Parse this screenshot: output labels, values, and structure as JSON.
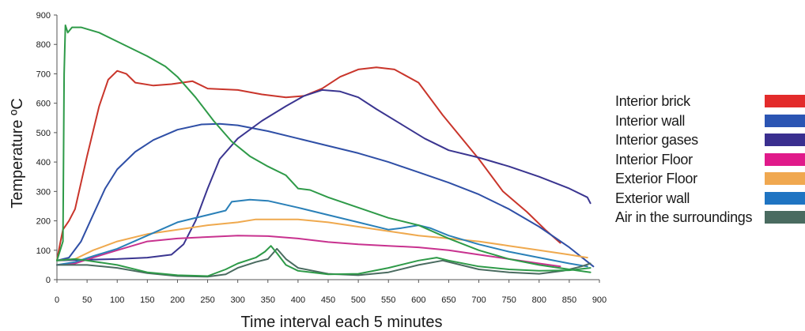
{
  "chart_data": {
    "type": "line",
    "title": "",
    "xlabel": "Time interval each 5 minutes",
    "ylabel": "Temperature ºC",
    "xlim": [
      0,
      900
    ],
    "ylim": [
      0,
      900
    ],
    "x_ticks": [
      0,
      50,
      100,
      150,
      200,
      250,
      300,
      350,
      400,
      450,
      500,
      550,
      600,
      650,
      700,
      750,
      800,
      850,
      900
    ],
    "y_ticks": [
      0,
      100,
      200,
      300,
      400,
      500,
      600,
      700,
      800,
      900
    ],
    "grid": false,
    "legend_position": "right",
    "series": [
      {
        "name": "Interior brick",
        "color": "#e32b2b",
        "line_color": "#c9352b",
        "points": [
          [
            0,
            65
          ],
          [
            5,
            120
          ],
          [
            10,
            170
          ],
          [
            20,
            200
          ],
          [
            30,
            240
          ],
          [
            50,
            420
          ],
          [
            70,
            590
          ],
          [
            85,
            680
          ],
          [
            100,
            710
          ],
          [
            115,
            700
          ],
          [
            130,
            670
          ],
          [
            160,
            660
          ],
          [
            190,
            665
          ],
          [
            225,
            675
          ],
          [
            250,
            650
          ],
          [
            300,
            645
          ],
          [
            340,
            630
          ],
          [
            380,
            620
          ],
          [
            410,
            625
          ],
          [
            440,
            650
          ],
          [
            470,
            690
          ],
          [
            500,
            715
          ],
          [
            530,
            722
          ],
          [
            560,
            715
          ],
          [
            600,
            670
          ],
          [
            640,
            560
          ],
          [
            660,
            510
          ],
          [
            700,
            410
          ],
          [
            740,
            300
          ],
          [
            780,
            230
          ],
          [
            810,
            170
          ],
          [
            835,
            125
          ]
        ]
      },
      {
        "name": "Interior wall",
        "color": "#2b55b3",
        "line_color": "#2f4fa6",
        "points": [
          [
            0,
            65
          ],
          [
            20,
            75
          ],
          [
            40,
            130
          ],
          [
            60,
            220
          ],
          [
            80,
            310
          ],
          [
            100,
            375
          ],
          [
            130,
            435
          ],
          [
            160,
            475
          ],
          [
            200,
            510
          ],
          [
            240,
            528
          ],
          [
            270,
            530
          ],
          [
            300,
            525
          ],
          [
            350,
            505
          ],
          [
            400,
            480
          ],
          [
            450,
            455
          ],
          [
            500,
            430
          ],
          [
            550,
            400
          ],
          [
            600,
            365
          ],
          [
            650,
            330
          ],
          [
            700,
            290
          ],
          [
            750,
            240
          ],
          [
            800,
            180
          ],
          [
            850,
            110
          ],
          [
            890,
            45
          ]
        ]
      },
      {
        "name": "Interior gases",
        "color": "#3a2f8f",
        "line_color": "#3a3590",
        "points": [
          [
            0,
            65
          ],
          [
            50,
            68
          ],
          [
            100,
            70
          ],
          [
            150,
            75
          ],
          [
            190,
            85
          ],
          [
            210,
            120
          ],
          [
            230,
            200
          ],
          [
            250,
            310
          ],
          [
            270,
            410
          ],
          [
            300,
            480
          ],
          [
            340,
            540
          ],
          [
            380,
            590
          ],
          [
            410,
            625
          ],
          [
            440,
            645
          ],
          [
            470,
            640
          ],
          [
            500,
            620
          ],
          [
            530,
            580
          ],
          [
            570,
            530
          ],
          [
            610,
            480
          ],
          [
            650,
            440
          ],
          [
            700,
            415
          ],
          [
            750,
            385
          ],
          [
            800,
            350
          ],
          [
            850,
            310
          ],
          [
            880,
            280
          ],
          [
            885,
            260
          ]
        ]
      },
      {
        "name": "Interior Floor",
        "color": "#e01a8a",
        "line_color": "#c8328f",
        "points": [
          [
            0,
            50
          ],
          [
            30,
            55
          ],
          [
            60,
            75
          ],
          [
            100,
            100
          ],
          [
            150,
            130
          ],
          [
            200,
            140
          ],
          [
            250,
            145
          ],
          [
            300,
            150
          ],
          [
            350,
            148
          ],
          [
            400,
            140
          ],
          [
            450,
            128
          ],
          [
            500,
            120
          ],
          [
            550,
            115
          ],
          [
            600,
            110
          ],
          [
            650,
            100
          ],
          [
            700,
            85
          ],
          [
            750,
            70
          ],
          [
            800,
            55
          ],
          [
            835,
            45
          ]
        ]
      },
      {
        "name": "Exterior Floor",
        "color": "#f0a850",
        "line_color": "#efa94e",
        "points": [
          [
            0,
            65
          ],
          [
            30,
            70
          ],
          [
            60,
            100
          ],
          [
            100,
            130
          ],
          [
            150,
            155
          ],
          [
            200,
            170
          ],
          [
            250,
            185
          ],
          [
            300,
            195
          ],
          [
            330,
            205
          ],
          [
            400,
            205
          ],
          [
            450,
            195
          ],
          [
            500,
            180
          ],
          [
            550,
            165
          ],
          [
            600,
            150
          ],
          [
            650,
            140
          ],
          [
            700,
            130
          ],
          [
            750,
            115
          ],
          [
            800,
            100
          ],
          [
            850,
            85
          ],
          [
            880,
            75
          ]
        ]
      },
      {
        "name": "Exterior wall",
        "color": "#1f74c2",
        "line_color": "#2a80b8",
        "points": [
          [
            0,
            50
          ],
          [
            30,
            60
          ],
          [
            60,
            80
          ],
          [
            100,
            105
          ],
          [
            150,
            150
          ],
          [
            200,
            195
          ],
          [
            250,
            220
          ],
          [
            280,
            235
          ],
          [
            290,
            265
          ],
          [
            320,
            272
          ],
          [
            350,
            268
          ],
          [
            400,
            245
          ],
          [
            450,
            220
          ],
          [
            500,
            195
          ],
          [
            550,
            170
          ],
          [
            570,
            175
          ],
          [
            600,
            185
          ],
          [
            620,
            175
          ],
          [
            650,
            150
          ],
          [
            700,
            120
          ],
          [
            750,
            95
          ],
          [
            800,
            75
          ],
          [
            850,
            55
          ],
          [
            880,
            45
          ]
        ]
      },
      {
        "name": "Air in the surroundings",
        "color": "#4a6b60",
        "line_color": "#4a6b60",
        "points": [
          [
            0,
            50
          ],
          [
            50,
            50
          ],
          [
            100,
            40
          ],
          [
            150,
            22
          ],
          [
            200,
            12
          ],
          [
            250,
            10
          ],
          [
            280,
            18
          ],
          [
            300,
            40
          ],
          [
            330,
            60
          ],
          [
            350,
            70
          ],
          [
            365,
            105
          ],
          [
            380,
            70
          ],
          [
            400,
            40
          ],
          [
            450,
            20
          ],
          [
            500,
            15
          ],
          [
            550,
            25
          ],
          [
            600,
            50
          ],
          [
            640,
            65
          ],
          [
            660,
            55
          ],
          [
            700,
            35
          ],
          [
            750,
            25
          ],
          [
            800,
            20
          ],
          [
            840,
            30
          ],
          [
            870,
            45
          ],
          [
            885,
            55
          ]
        ]
      },
      {
        "name": "",
        "color": "#2e9a48",
        "line_color": "#2e9a48",
        "points": [
          [
            0,
            65
          ],
          [
            10,
            130
          ],
          [
            12,
            700
          ],
          [
            14,
            865
          ],
          [
            18,
            840
          ],
          [
            25,
            858
          ],
          [
            40,
            858
          ],
          [
            70,
            840
          ],
          [
            100,
            810
          ],
          [
            150,
            760
          ],
          [
            180,
            725
          ],
          [
            200,
            690
          ],
          [
            230,
            620
          ],
          [
            260,
            540
          ],
          [
            290,
            470
          ],
          [
            320,
            420
          ],
          [
            350,
            385
          ],
          [
            380,
            355
          ],
          [
            400,
            310
          ],
          [
            420,
            305
          ],
          [
            450,
            280
          ],
          [
            500,
            245
          ],
          [
            550,
            210
          ],
          [
            600,
            185
          ],
          [
            650,
            140
          ],
          [
            700,
            100
          ],
          [
            750,
            70
          ],
          [
            800,
            50
          ],
          [
            850,
            35
          ],
          [
            885,
            25
          ]
        ]
      },
      {
        "name": "",
        "color": "#2e9a48",
        "line_color": "#2e9a48",
        "points": [
          [
            0,
            65
          ],
          [
            30,
            70
          ],
          [
            50,
            65
          ],
          [
            100,
            50
          ],
          [
            150,
            25
          ],
          [
            200,
            15
          ],
          [
            250,
            12
          ],
          [
            280,
            35
          ],
          [
            300,
            55
          ],
          [
            330,
            75
          ],
          [
            345,
            95
          ],
          [
            355,
            115
          ],
          [
            365,
            90
          ],
          [
            380,
            50
          ],
          [
            400,
            30
          ],
          [
            450,
            18
          ],
          [
            500,
            20
          ],
          [
            550,
            40
          ],
          [
            600,
            65
          ],
          [
            630,
            75
          ],
          [
            650,
            65
          ],
          [
            700,
            45
          ],
          [
            750,
            35
          ],
          [
            800,
            30
          ],
          [
            850,
            32
          ],
          [
            885,
            40
          ]
        ]
      }
    ]
  }
}
